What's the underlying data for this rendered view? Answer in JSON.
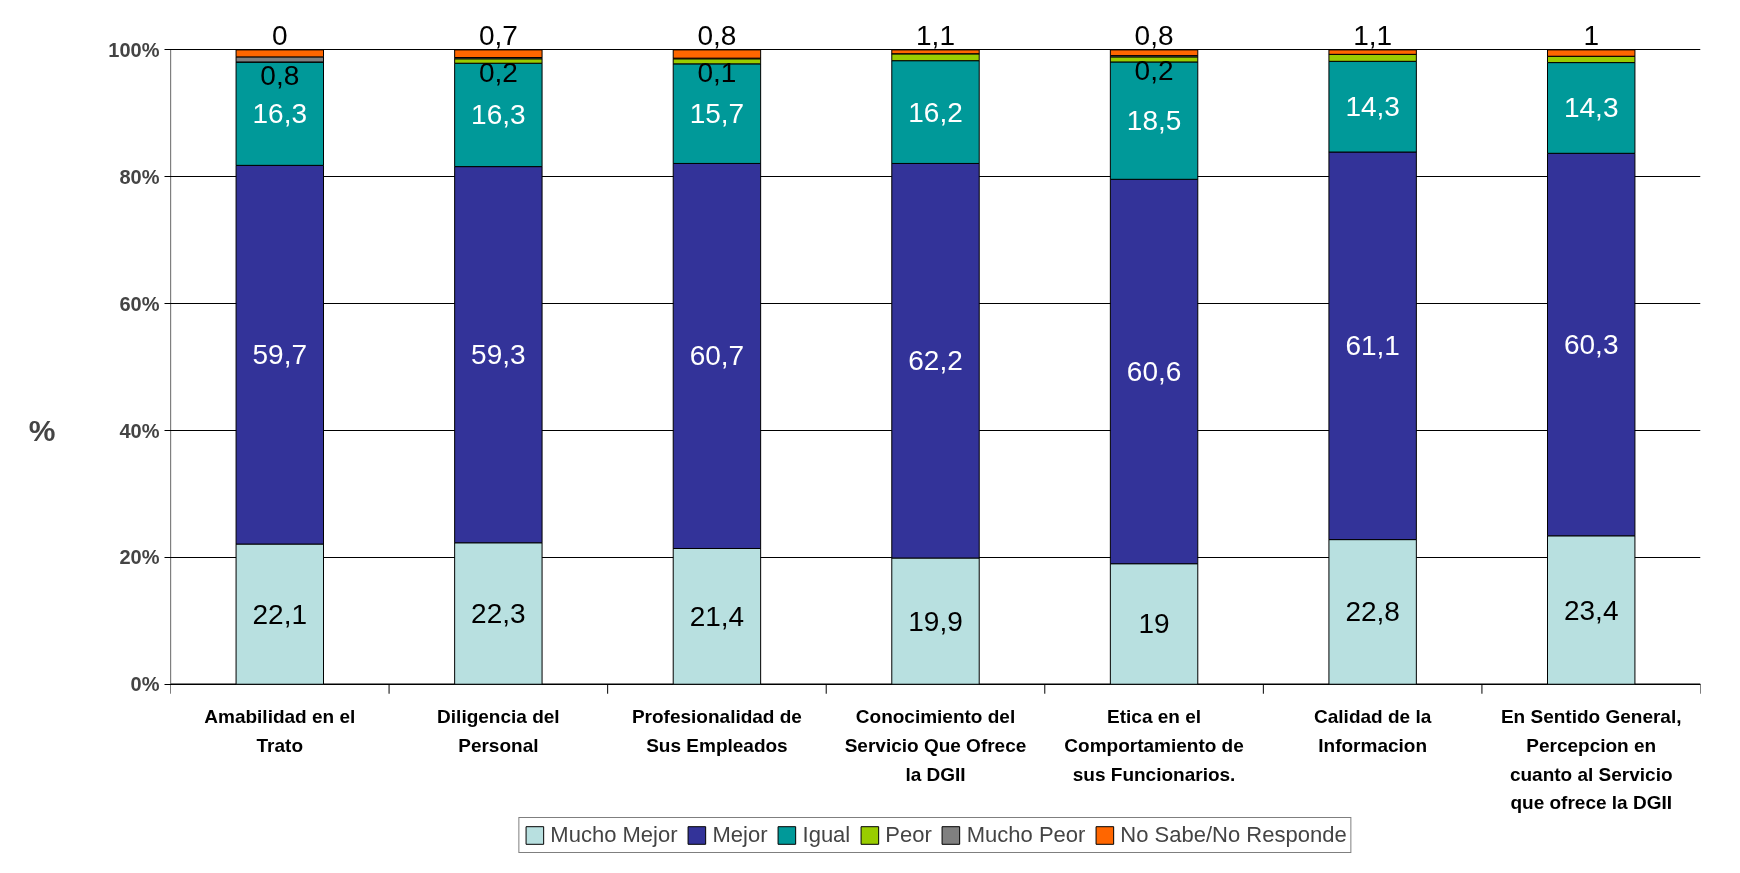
{
  "chart_data": {
    "type": "bar",
    "stacked": true,
    "ylabel": "%",
    "categories": [
      "Amabilidad en el Trato",
      "Diligencia del Personal",
      "Profesionalidad de Sus Empleados",
      "Conocimiento del Servicio Que Ofrece la DGII",
      "Etica en el Comportamiento de sus Funcionarios.",
      "Calidad de la Informacion",
      "En Sentido General, Percepcion en cuanto al Servicio que ofrece la DGII"
    ],
    "series": [
      {
        "name": "Mucho Mejor",
        "color": "#b8e0e0",
        "values": [
          22.1,
          22.3,
          21.4,
          19.9,
          19,
          22.8,
          23.4
        ],
        "value_labels": [
          "22,1",
          "22,3",
          "21,4",
          "19,9",
          "19",
          "22,8",
          "23,4"
        ]
      },
      {
        "name": "Mejor",
        "color": "#333399",
        "values": [
          59.7,
          59.3,
          60.7,
          62.2,
          60.6,
          61.1,
          60.3
        ],
        "value_labels": [
          "59,7",
          "59,3",
          "60,7",
          "62,2",
          "60,6",
          "61,1",
          "60,3"
        ]
      },
      {
        "name": "Igual",
        "color": "#009999",
        "values": [
          16.3,
          16.3,
          15.7,
          16.2,
          18.5,
          14.3,
          14.3
        ],
        "value_labels": [
          "16,3",
          "16,3",
          "15,7",
          "16,2",
          "18,5",
          "14,3",
          "14,3"
        ]
      },
      {
        "name": "Peor",
        "color": "#99cc00",
        "values": [
          0,
          0.7,
          0.8,
          1.1,
          0.8,
          1.1,
          1
        ],
        "value_labels": [
          "0",
          "0,7",
          "0,8",
          "1,1",
          "0,8",
          "1,1",
          "1"
        ]
      },
      {
        "name": "Mucho Peor",
        "color": "#808080",
        "values": [
          0.8,
          0.2,
          0.1,
          0,
          0.2,
          0,
          0
        ],
        "value_labels": [
          "0,8",
          "0,2",
          "0,1",
          null,
          "0,2",
          null,
          null
        ]
      },
      {
        "name": "No Sabe/No Responde",
        "color": "#ff6600",
        "values": [
          1.1,
          1.2,
          1.3,
          0.6,
          0.9,
          0.7,
          1.0
        ]
      }
    ],
    "ylim": [
      0,
      100
    ],
    "yticks": [
      {
        "value": 0,
        "label": "0%"
      },
      {
        "value": 20,
        "label": "20%"
      },
      {
        "value": 40,
        "label": "40%"
      },
      {
        "value": 60,
        "label": "60%"
      },
      {
        "value": 80,
        "label": "80%"
      },
      {
        "value": 100,
        "label": "100%"
      }
    ],
    "grid": "y",
    "legend": "bottom"
  }
}
